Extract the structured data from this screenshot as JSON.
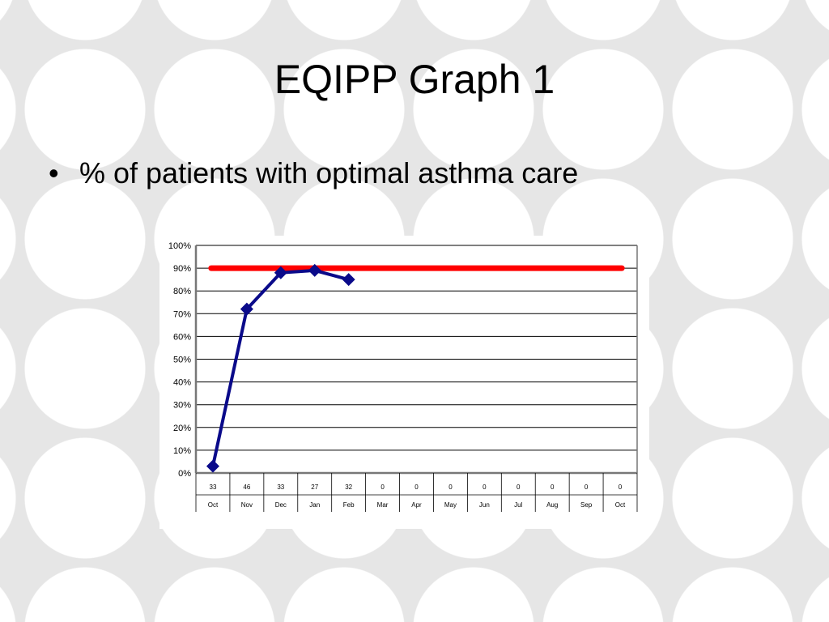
{
  "slide": {
    "title": "EQIPP Graph 1",
    "bullet": "% of patients with optimal asthma care"
  },
  "icons": {
    "bullet": "bullet-dot-icon"
  },
  "colors": {
    "data_line": "#0a0a8a",
    "goal_line": "#ff0000",
    "background_circle": "#ffffff",
    "background": "#e6e6e6"
  },
  "chart_data": {
    "type": "line",
    "y_ticks": [
      "0%",
      "10%",
      "20%",
      "30%",
      "40%",
      "50%",
      "60%",
      "70%",
      "80%",
      "90%",
      "100%"
    ],
    "ylim": [
      0,
      100
    ],
    "grid": true,
    "categories": [
      "Oct",
      "Nov",
      "Dec",
      "Jan",
      "Feb",
      "Mar",
      "Apr",
      "May",
      "Jun",
      "Jul",
      "Aug",
      "Sep",
      "Oct"
    ],
    "counts": [
      "33",
      "46",
      "33",
      "27",
      "32",
      "0",
      "0",
      "0",
      "0",
      "0",
      "0",
      "0",
      "0"
    ],
    "series": [
      {
        "values": [
          3,
          72,
          88,
          89,
          85,
          null,
          null,
          null,
          null,
          null,
          null,
          null,
          null
        ]
      },
      {
        "values": [
          90,
          90,
          90,
          90,
          90,
          90,
          90,
          90,
          90,
          90,
          90,
          90,
          90
        ]
      }
    ]
  }
}
